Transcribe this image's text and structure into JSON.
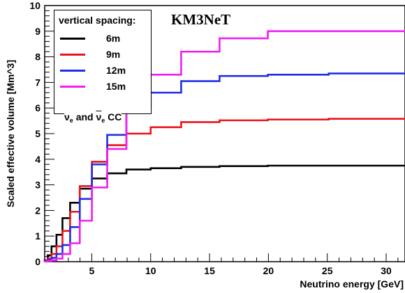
{
  "chart_data": {
    "type": "line",
    "step": true,
    "xlabel": "Neutrino energy [GeV]",
    "ylabel": "Scaled effective volume [Mm^3]",
    "xlim": [
      1,
      31.6
    ],
    "ylim": [
      0,
      10
    ],
    "x_ticks": [
      5,
      10,
      15,
      20,
      25,
      30
    ],
    "y_ticks": [
      0,
      1,
      2,
      3,
      4,
      5,
      6,
      7,
      8,
      9,
      10
    ],
    "bin_edges": [
      1.0,
      1.26,
      1.58,
      2.0,
      2.51,
      3.16,
      3.98,
      5.01,
      6.31,
      7.94,
      10.0,
      12.59,
      15.85,
      19.95,
      25.12,
      31.62
    ],
    "series": [
      {
        "name": "6m",
        "color": "#000000",
        "values": [
          0.05,
          0.25,
          0.6,
          1.05,
          1.7,
          2.3,
          2.85,
          3.25,
          3.45,
          3.6,
          3.65,
          3.7,
          3.73,
          3.75,
          3.75
        ]
      },
      {
        "name": "9m",
        "color": "#e8141a",
        "values": [
          0.03,
          0.12,
          0.3,
          0.6,
          1.2,
          1.95,
          2.95,
          3.9,
          4.55,
          5.0,
          5.25,
          5.45,
          5.52,
          5.55,
          5.58
        ]
      },
      {
        "name": "12m",
        "color": "#1f2ee8",
        "values": [
          0.02,
          0.07,
          0.15,
          0.3,
          0.65,
          1.35,
          2.45,
          3.8,
          4.95,
          6.0,
          6.6,
          7.05,
          7.25,
          7.3,
          7.35
        ]
      },
      {
        "name": "15m",
        "color": "#f21cf2",
        "values": [
          0.01,
          0.03,
          0.06,
          0.12,
          0.3,
          0.72,
          1.6,
          2.9,
          4.4,
          6.05,
          7.3,
          8.2,
          8.72,
          9.0,
          9.0
        ]
      }
    ],
    "legend_title": "vertical spacing:",
    "legend_position": "top-left",
    "annotation_brand": "KM3NeT",
    "annotation_channel": {
      "main": "ν",
      "sub": "e",
      "join": " and ",
      "bar_main": "ν",
      "bar_sub": "e",
      "suffix": " CC"
    },
    "grid": false
  }
}
